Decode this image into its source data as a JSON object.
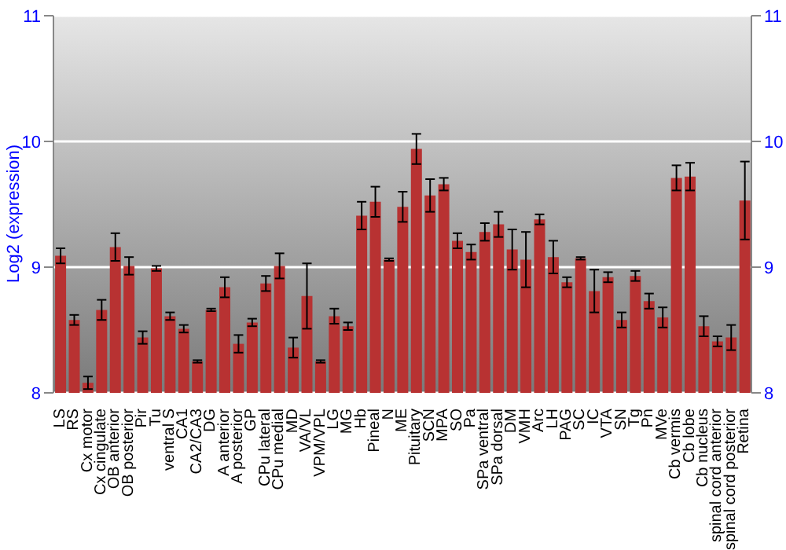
{
  "chart_data": {
    "type": "bar",
    "ylabel": "Log2 (expression)",
    "categories": [
      "LS",
      "RS",
      "Cx motor",
      "Cx cingulate",
      "OB anterior",
      "OB posterior",
      "Pir",
      "Tu",
      "ventral S",
      "CA1",
      "CA2/CA3",
      "DG",
      "A anterior",
      "A posterior",
      "GP",
      "CPu lateral",
      "CPu medial",
      "MD",
      "VA/VL",
      "VPM/VPL",
      "LG",
      "MG",
      "Hb",
      "Pineal",
      "N",
      "ME",
      "Pituitary",
      "SCN",
      "MPA",
      "SO",
      "Pa",
      "SPa ventral",
      "SPa dorsal",
      "DM",
      "VMH",
      "Arc",
      "LH",
      "PAG",
      "SC",
      "IC",
      "VTA",
      "SN",
      "Tg",
      "Pn",
      "MVe",
      "Cb vermis",
      "Cb lobe",
      "Cb nucleus",
      "spinal cord anterior",
      "spinal cord posterior",
      "Retina"
    ],
    "values": [
      9.09,
      8.58,
      8.08,
      8.66,
      9.16,
      9.01,
      8.44,
      8.99,
      8.61,
      8.51,
      8.25,
      8.66,
      8.84,
      8.39,
      8.56,
      8.87,
      9.01,
      8.36,
      8.77,
      8.25,
      8.61,
      8.53,
      9.41,
      9.52,
      9.06,
      9.48,
      9.94,
      9.57,
      9.66,
      9.21,
      9.12,
      9.28,
      9.34,
      9.14,
      9.06,
      9.38,
      9.08,
      8.88,
      9.07,
      8.81,
      8.92,
      8.58,
      8.93,
      8.73,
      8.6,
      9.71,
      9.72,
      8.53,
      8.41,
      8.44,
      9.53
    ],
    "errors": [
      0.06,
      0.04,
      0.05,
      0.08,
      0.11,
      0.07,
      0.05,
      0.02,
      0.03,
      0.03,
      0.01,
      0.01,
      0.08,
      0.07,
      0.03,
      0.06,
      0.1,
      0.08,
      0.26,
      0.01,
      0.06,
      0.03,
      0.11,
      0.12,
      0.01,
      0.12,
      0.12,
      0.13,
      0.05,
      0.06,
      0.06,
      0.07,
      0.1,
      0.16,
      0.22,
      0.04,
      0.13,
      0.04,
      0.01,
      0.17,
      0.04,
      0.06,
      0.04,
      0.06,
      0.08,
      0.1,
      0.11,
      0.08,
      0.04,
      0.1,
      0.31
    ],
    "color": "#b83232",
    "ylim": [
      8,
      11
    ],
    "yticks": [
      8,
      9,
      10,
      11
    ],
    "y2lim": [
      8,
      11
    ],
    "y2ticks": [
      8,
      9,
      10,
      11
    ],
    "grid": "y",
    "legend": false
  }
}
